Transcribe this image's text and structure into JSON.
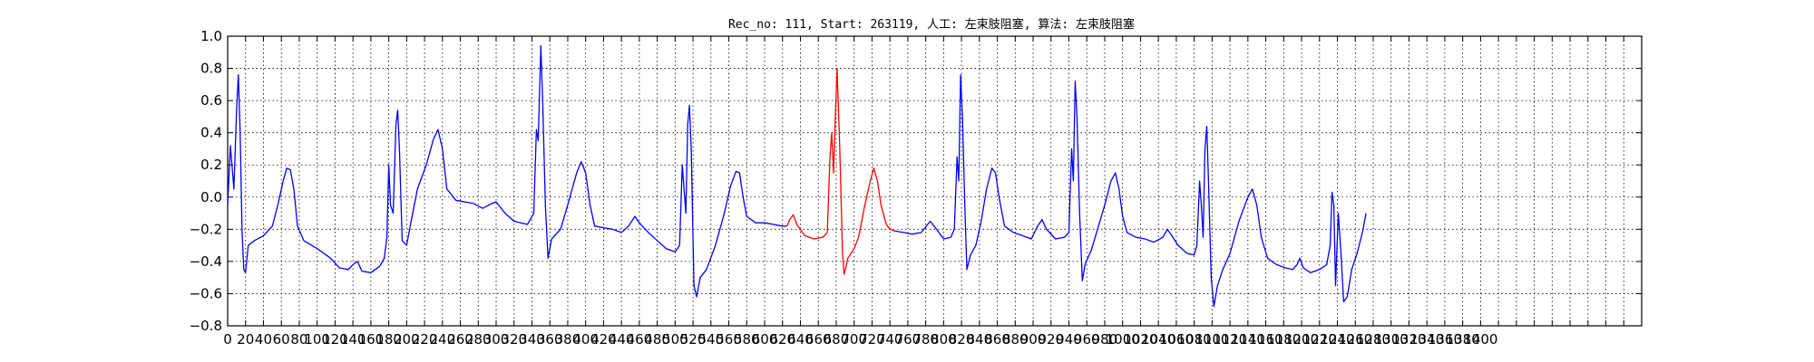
{
  "chart_data": {
    "type": "line",
    "title": "Rec_no: 111, Start: 263119, 人工: 左束肢阻塞, 算法: 左束肢阻塞",
    "xlabel": "",
    "ylabel": "",
    "xlim": [
      0,
      1580
    ],
    "ylim": [
      -0.8,
      1.0
    ],
    "yticks": [
      "1.0",
      "0.8",
      "0.6",
      "0.4",
      "0.2",
      "0.0",
      "−0.2",
      "−0.4",
      "−0.6",
      "−0.8"
    ],
    "ytick_values": [
      1.0,
      0.8,
      0.6,
      0.4,
      0.2,
      0.0,
      -0.2,
      -0.4,
      -0.6,
      -0.8
    ],
    "xtick_step": 20,
    "xtick_label_max": 1400,
    "grid": true,
    "grid_style": "dotted",
    "line_colors": {
      "normal": "#0000ff",
      "highlight": "#ff0000"
    },
    "highlight_range": [
      625,
      745
    ],
    "series": [
      {
        "values_points": [
          [
            0,
            -0.05
          ],
          [
            3,
            0.32
          ],
          [
            7,
            0.05
          ],
          [
            10,
            0.55
          ],
          [
            12,
            0.76
          ],
          [
            14,
            0.4
          ],
          [
            16,
            -0.2
          ],
          [
            18,
            -0.45
          ],
          [
            20,
            -0.47
          ],
          [
            23,
            -0.3
          ],
          [
            30,
            -0.27
          ],
          [
            40,
            -0.24
          ],
          [
            50,
            -0.18
          ],
          [
            56,
            -0.05
          ],
          [
            62,
            0.1
          ],
          [
            66,
            0.18
          ],
          [
            70,
            0.17
          ],
          [
            74,
            0.05
          ],
          [
            78,
            -0.18
          ],
          [
            85,
            -0.27
          ],
          [
            100,
            -0.32
          ],
          [
            115,
            -0.38
          ],
          [
            125,
            -0.44
          ],
          [
            135,
            -0.45
          ],
          [
            140,
            -0.42
          ],
          [
            145,
            -0.4
          ],
          [
            150,
            -0.46
          ],
          [
            160,
            -0.47
          ],
          [
            170,
            -0.43
          ],
          [
            175,
            -0.38
          ],
          [
            178,
            -0.25
          ],
          [
            180,
            0.2
          ],
          [
            182,
            -0.05
          ],
          [
            185,
            -0.1
          ],
          [
            188,
            0.45
          ],
          [
            190,
            0.54
          ],
          [
            192,
            0.3
          ],
          [
            195,
            -0.27
          ],
          [
            200,
            -0.3
          ],
          [
            205,
            -0.15
          ],
          [
            212,
            0.05
          ],
          [
            222,
            0.2
          ],
          [
            230,
            0.36
          ],
          [
            235,
            0.42
          ],
          [
            240,
            0.3
          ],
          [
            245,
            0.05
          ],
          [
            255,
            -0.02
          ],
          [
            265,
            -0.03
          ],
          [
            275,
            -0.04
          ],
          [
            285,
            -0.07
          ],
          [
            295,
            -0.04
          ],
          [
            300,
            -0.03
          ],
          [
            310,
            -0.1
          ],
          [
            320,
            -0.15
          ],
          [
            335,
            -0.17
          ],
          [
            342,
            -0.1
          ],
          [
            345,
            0.42
          ],
          [
            347,
            0.35
          ],
          [
            350,
            0.94
          ],
          [
            352,
            0.6
          ],
          [
            355,
            -0.05
          ],
          [
            358,
            -0.38
          ],
          [
            362,
            -0.26
          ],
          [
            372,
            -0.2
          ],
          [
            380,
            -0.05
          ],
          [
            390,
            0.15
          ],
          [
            395,
            0.22
          ],
          [
            400,
            0.15
          ],
          [
            405,
            -0.05
          ],
          [
            410,
            -0.18
          ],
          [
            420,
            -0.19
          ],
          [
            430,
            -0.2
          ],
          [
            440,
            -0.22
          ],
          [
            448,
            -0.18
          ],
          [
            455,
            -0.12
          ],
          [
            460,
            -0.16
          ],
          [
            470,
            -0.22
          ],
          [
            480,
            -0.27
          ],
          [
            490,
            -0.32
          ],
          [
            500,
            -0.34
          ],
          [
            505,
            -0.3
          ],
          [
            508,
            0.2
          ],
          [
            510,
            0.05
          ],
          [
            512,
            -0.1
          ],
          [
            514,
            0.45
          ],
          [
            516,
            0.57
          ],
          [
            518,
            0.3
          ],
          [
            521,
            -0.55
          ],
          [
            524,
            -0.62
          ],
          [
            528,
            -0.5
          ],
          [
            535,
            -0.45
          ],
          [
            545,
            -0.3
          ],
          [
            555,
            -0.1
          ],
          [
            562,
            0.07
          ],
          [
            568,
            0.16
          ],
          [
            572,
            0.15
          ],
          [
            576,
            0.0
          ],
          [
            580,
            -0.12
          ],
          [
            590,
            -0.16
          ],
          [
            600,
            -0.16
          ],
          [
            610,
            -0.17
          ],
          [
            620,
            -0.18
          ],
          [
            625,
            -0.18
          ],
          [
            628,
            -0.14
          ],
          [
            632,
            -0.11
          ],
          [
            636,
            -0.17
          ],
          [
            645,
            -0.24
          ],
          [
            655,
            -0.26
          ],
          [
            665,
            -0.25
          ],
          [
            670,
            -0.22
          ],
          [
            673,
            0.25
          ],
          [
            675,
            0.4
          ],
          [
            677,
            0.15
          ],
          [
            679,
            0.5
          ],
          [
            681,
            0.8
          ],
          [
            684,
            0.3
          ],
          [
            687,
            -0.35
          ],
          [
            689,
            -0.48
          ],
          [
            693,
            -0.38
          ],
          [
            700,
            -0.32
          ],
          [
            705,
            -0.25
          ],
          [
            712,
            -0.05
          ],
          [
            718,
            0.1
          ],
          [
            722,
            0.18
          ],
          [
            726,
            0.1
          ],
          [
            730,
            -0.05
          ],
          [
            736,
            -0.17
          ],
          [
            740,
            -0.2
          ],
          [
            745,
            -0.21
          ],
          [
            755,
            -0.22
          ],
          [
            765,
            -0.23
          ],
          [
            775,
            -0.22
          ],
          [
            785,
            -0.15
          ],
          [
            792,
            -0.2
          ],
          [
            800,
            -0.26
          ],
          [
            808,
            -0.25
          ],
          [
            812,
            -0.2
          ],
          [
            815,
            0.25
          ],
          [
            817,
            0.1
          ],
          [
            819,
            0.76
          ],
          [
            821,
            0.5
          ],
          [
            824,
            -0.1
          ],
          [
            826,
            -0.45
          ],
          [
            830,
            -0.36
          ],
          [
            836,
            -0.3
          ],
          [
            842,
            -0.15
          ],
          [
            848,
            0.05
          ],
          [
            854,
            0.18
          ],
          [
            858,
            0.15
          ],
          [
            862,
            0.0
          ],
          [
            868,
            -0.18
          ],
          [
            878,
            -0.22
          ],
          [
            888,
            -0.24
          ],
          [
            898,
            -0.26
          ],
          [
            905,
            -0.18
          ],
          [
            910,
            -0.14
          ],
          [
            915,
            -0.2
          ],
          [
            925,
            -0.26
          ],
          [
            935,
            -0.25
          ],
          [
            940,
            -0.22
          ],
          [
            943,
            0.3
          ],
          [
            945,
            0.1
          ],
          [
            947,
            0.72
          ],
          [
            949,
            0.5
          ],
          [
            952,
            -0.1
          ],
          [
            955,
            -0.52
          ],
          [
            958,
            -0.42
          ],
          [
            965,
            -0.33
          ],
          [
            972,
            -0.2
          ],
          [
            980,
            -0.05
          ],
          [
            987,
            0.1
          ],
          [
            992,
            0.15
          ],
          [
            996,
            0.05
          ],
          [
            1000,
            -0.12
          ],
          [
            1005,
            -0.22
          ],
          [
            1015,
            -0.25
          ],
          [
            1025,
            -0.26
          ],
          [
            1035,
            -0.28
          ],
          [
            1045,
            -0.25
          ],
          [
            1050,
            -0.2
          ],
          [
            1055,
            -0.24
          ],
          [
            1062,
            -0.3
          ],
          [
            1072,
            -0.35
          ],
          [
            1080,
            -0.36
          ],
          [
            1083,
            -0.3
          ],
          [
            1086,
            0.1
          ],
          [
            1088,
            -0.05
          ],
          [
            1090,
            -0.25
          ],
          [
            1092,
            0.3
          ],
          [
            1094,
            0.44
          ],
          [
            1096,
            0.1
          ],
          [
            1099,
            -0.5
          ],
          [
            1102,
            -0.68
          ],
          [
            1106,
            -0.55
          ],
          [
            1112,
            -0.45
          ],
          [
            1120,
            -0.35
          ],
          [
            1130,
            -0.15
          ],
          [
            1140,
            0.0
          ],
          [
            1145,
            0.05
          ],
          [
            1150,
            -0.05
          ],
          [
            1155,
            -0.25
          ],
          [
            1162,
            -0.38
          ],
          [
            1172,
            -0.42
          ],
          [
            1182,
            -0.44
          ],
          [
            1190,
            -0.45
          ],
          [
            1195,
            -0.42
          ],
          [
            1198,
            -0.38
          ],
          [
            1202,
            -0.44
          ],
          [
            1210,
            -0.47
          ],
          [
            1220,
            -0.45
          ],
          [
            1228,
            -0.42
          ],
          [
            1232,
            -0.3
          ],
          [
            1234,
            0.03
          ],
          [
            1236,
            -0.05
          ],
          [
            1238,
            -0.55
          ],
          [
            1241,
            -0.1
          ],
          [
            1244,
            -0.35
          ],
          [
            1247,
            -0.65
          ],
          [
            1251,
            -0.62
          ],
          [
            1256,
            -0.45
          ],
          [
            1262,
            -0.35
          ],
          [
            1268,
            -0.22
          ],
          [
            1272,
            -0.1
          ]
        ]
      }
    ]
  }
}
